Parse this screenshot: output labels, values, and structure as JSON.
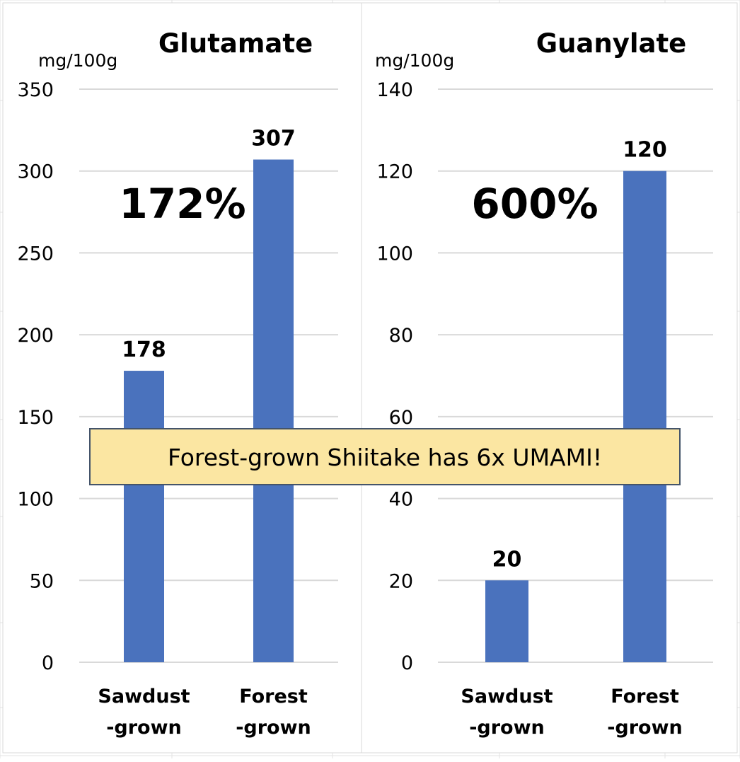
{
  "chart_data": [
    {
      "type": "bar",
      "title": "Glutamate",
      "ylabel": "mg/100g",
      "categories": [
        "Sawdust\n-grown",
        "Forest\n-grown"
      ],
      "values": [
        178,
        307
      ],
      "data_labels": [
        "178",
        "307"
      ],
      "ylim": [
        0,
        350
      ],
      "yticks": [
        0,
        50,
        100,
        150,
        200,
        250,
        300,
        350
      ],
      "annotation": "172%",
      "grid": true,
      "color": "#4a72bd"
    },
    {
      "type": "bar",
      "title": "Guanylate",
      "ylabel": "mg/100g",
      "categories": [
        "Sawdust\n-grown",
        "Forest\n-grown"
      ],
      "values": [
        20,
        120
      ],
      "data_labels": [
        "20",
        "120"
      ],
      "ylim": [
        0,
        140
      ],
      "yticks": [
        0,
        20,
        40,
        60,
        80,
        100,
        120,
        140
      ],
      "annotation": "600%",
      "grid": true,
      "color": "#4a72bd"
    }
  ],
  "banner": {
    "text": "Forest-grown Shiitake has 6x UMAMI!",
    "fill": "#fbe6a2",
    "border": "#44546a"
  }
}
